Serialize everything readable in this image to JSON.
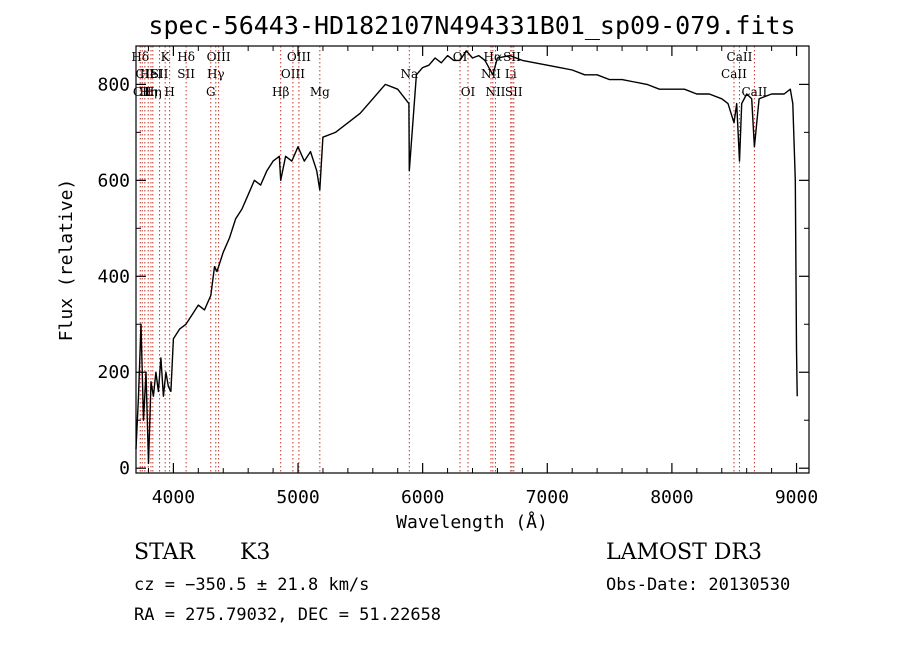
{
  "chart_data": {
    "type": "line",
    "title": "spec-56443-HD182107N494331B01_sp09-079.fits",
    "xlabel": "Wavelength (Å)",
    "ylabel": "Flux (relative)",
    "xlim": [
      3700,
      9100
    ],
    "ylim": [
      -10,
      880
    ],
    "x_ticks": [
      4000,
      5000,
      6000,
      7000,
      8000,
      9000
    ],
    "y_ticks": [
      0,
      200,
      400,
      600,
      800
    ],
    "grid": false,
    "series": [
      {
        "x": [
          3700,
          3720,
          3740,
          3760,
          3780,
          3800,
          3820,
          3840,
          3860,
          3880,
          3900,
          3920,
          3940,
          3960,
          3980,
          4000,
          4050,
          4100,
          4150,
          4200,
          4250,
          4300,
          4330,
          4350,
          4400,
          4450,
          4500,
          4550,
          4600,
          4650,
          4700,
          4750,
          4800,
          4850,
          4861,
          4900,
          4950,
          5000,
          5050,
          5100,
          5150,
          5175,
          5200,
          5300,
          5400,
          5500,
          5600,
          5700,
          5800,
          5890,
          5893,
          5950,
          6000,
          6050,
          6100,
          6150,
          6200,
          6250,
          6300,
          6350,
          6400,
          6450,
          6500,
          6563,
          6600,
          6700,
          6800,
          6900,
          7000,
          7100,
          7200,
          7300,
          7400,
          7500,
          7600,
          7700,
          7800,
          7900,
          8000,
          8100,
          8200,
          8300,
          8400,
          8450,
          8498,
          8520,
          8542,
          8560,
          8600,
          8640,
          8662,
          8700,
          8800,
          8900,
          8950,
          8970,
          8990,
          9000,
          9005
        ],
        "y": [
          40,
          150,
          300,
          100,
          200,
          10,
          180,
          150,
          200,
          160,
          230,
          150,
          200,
          170,
          160,
          270,
          290,
          300,
          320,
          340,
          330,
          360,
          420,
          410,
          450,
          480,
          520,
          540,
          570,
          600,
          590,
          620,
          640,
          650,
          600,
          650,
          640,
          670,
          640,
          660,
          620,
          580,
          690,
          700,
          720,
          740,
          770,
          800,
          790,
          760,
          620,
          820,
          835,
          840,
          855,
          845,
          860,
          850,
          850,
          870,
          855,
          860,
          850,
          820,
          855,
          860,
          850,
          845,
          840,
          835,
          830,
          820,
          820,
          810,
          810,
          805,
          800,
          790,
          790,
          790,
          780,
          780,
          770,
          760,
          720,
          760,
          640,
          760,
          780,
          770,
          670,
          770,
          780,
          780,
          790,
          760,
          600,
          250,
          150
        ]
      }
    ],
    "line_markers": [
      {
        "x": 3734,
        "label": "Hδ",
        "row": 0
      },
      {
        "x": 3750,
        "label": "CII",
        "row": 2
      },
      {
        "x": 3771,
        "label": "CII",
        "row": 1
      },
      {
        "x": 3798,
        "label": "Hη",
        "row": 2
      },
      {
        "x": 3820,
        "label": "HeI",
        "row": 1
      },
      {
        "x": 3835,
        "label": "Hη",
        "row": 2
      },
      {
        "x": 3889,
        "label": "SII",
        "row": 1
      },
      {
        "x": 3934,
        "label": "K",
        "row": 0
      },
      {
        "x": 3970,
        "label": "H",
        "row": 2
      },
      {
        "x": 4102,
        "label": "Hδ",
        "row": 0
      },
      {
        "x": 4102,
        "label": "SII",
        "row": 1
      },
      {
        "x": 4300,
        "label": "G",
        "row": 2
      },
      {
        "x": 4340,
        "label": "Hγ",
        "row": 1
      },
      {
        "x": 4363,
        "label": "OIII",
        "row": 0
      },
      {
        "x": 4861,
        "label": "Hβ",
        "row": 2
      },
      {
        "x": 4959,
        "label": "OIII",
        "row": 1
      },
      {
        "x": 5007,
        "label": "OIII",
        "row": 0
      },
      {
        "x": 5175,
        "label": "Mg",
        "row": 2
      },
      {
        "x": 5893,
        "label": "Na",
        "row": 1
      },
      {
        "x": 6300,
        "label": "OI",
        "row": 0
      },
      {
        "x": 6364,
        "label": "OI",
        "row": 2
      },
      {
        "x": 6548,
        "label": "NII",
        "row": 1
      },
      {
        "x": 6563,
        "label": "Hα",
        "row": 0
      },
      {
        "x": 6584,
        "label": "NII",
        "row": 2
      },
      {
        "x": 6707,
        "label": "Li",
        "row": 1
      },
      {
        "x": 6717,
        "label": "SII",
        "row": 0
      },
      {
        "x": 6731,
        "label": "SII",
        "row": 2
      },
      {
        "x": 8498,
        "label": "CaII",
        "row": 1
      },
      {
        "x": 8542,
        "label": "CaII",
        "row": 0
      },
      {
        "x": 8662,
        "label": "CaII",
        "row": 2
      }
    ]
  },
  "info": {
    "class": "STAR",
    "subclass": "K3",
    "survey": "LAMOST DR3",
    "cz": "cz = −350.5 ± 21.8 km/s",
    "obs_date": "Obs-Date: 20130530",
    "radec": "RA = 275.79032, DEC =  51.22658"
  }
}
